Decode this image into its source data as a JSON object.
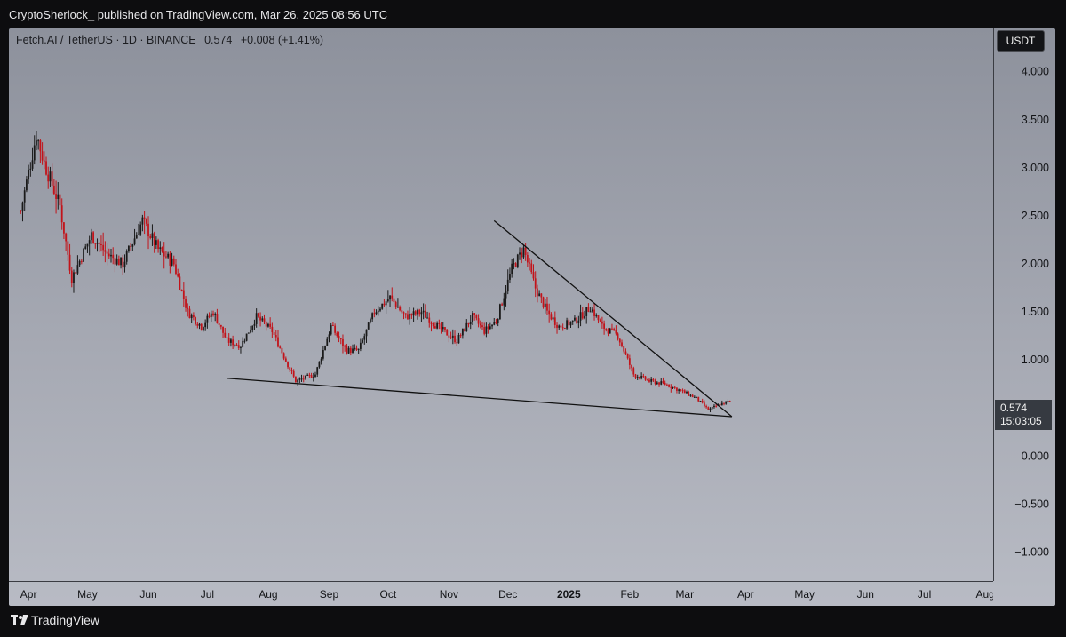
{
  "header": {
    "text": "CryptoSherlock_ published on TradingView.com, Mar 26, 2025 08:56 UTC"
  },
  "symbol": {
    "name": "Fetch.AI / TetherUS · 1D · BINANCE",
    "last": "0.574",
    "change": "+0.008 (+1.41%)"
  },
  "currency": "USDT",
  "price_tag": {
    "value": "0.574",
    "countdown": "15:03:05"
  },
  "footer": {
    "brand": "TradingView"
  },
  "colors": {
    "up": "#1a1a1a",
    "down": "#c2131a",
    "line": "#111111"
  },
  "chart_data": {
    "type": "candlestick",
    "title": "Fetch.AI / TetherUS · 1D · BINANCE",
    "yticks": [
      "4.000",
      "3.500",
      "3.000",
      "2.500",
      "2.000",
      "1.500",
      "1.000",
      "0.500",
      "0.000",
      "−0.500",
      "−1.000"
    ],
    "ytick_values": [
      4,
      3.5,
      3,
      2.5,
      2,
      1.5,
      1,
      0.5,
      0,
      -0.5,
      -1
    ],
    "ylim": [
      -1.3,
      4.45
    ],
    "x_months": [
      "Apr",
      "May",
      "Jun",
      "Jul",
      "Aug",
      "Sep",
      "Oct",
      "Nov",
      "Dec",
      "2025",
      "Feb",
      "Mar",
      "Apr",
      "May",
      "Jun",
      "Jul",
      "Aug"
    ],
    "xlim_days": [
      -6,
      495
    ],
    "month_days": [
      4,
      34,
      65,
      95,
      126,
      157,
      187,
      218,
      248,
      279,
      310,
      338,
      369,
      399,
      430,
      460,
      491
    ],
    "trendlines": [
      {
        "name": "resistance",
        "from": {
          "day": 241,
          "price": 2.45
        },
        "to": {
          "day": 362,
          "price": 0.41
        }
      },
      {
        "name": "support",
        "from": {
          "day": 105,
          "price": 0.81
        },
        "to": {
          "day": 362,
          "price": 0.41
        }
      }
    ],
    "price_path": [
      {
        "day": 0,
        "price": 2.55
      },
      {
        "day": 8,
        "price": 3.35
      },
      {
        "day": 12,
        "price": 3.05
      },
      {
        "day": 20,
        "price": 2.6
      },
      {
        "day": 26,
        "price": 1.85
      },
      {
        "day": 36,
        "price": 2.3
      },
      {
        "day": 44,
        "price": 2.1
      },
      {
        "day": 52,
        "price": 2.0
      },
      {
        "day": 62,
        "price": 2.45
      },
      {
        "day": 70,
        "price": 2.15
      },
      {
        "day": 78,
        "price": 2.0
      },
      {
        "day": 85,
        "price": 1.5
      },
      {
        "day": 92,
        "price": 1.35
      },
      {
        "day": 98,
        "price": 1.5
      },
      {
        "day": 105,
        "price": 1.2
      },
      {
        "day": 112,
        "price": 1.15
      },
      {
        "day": 120,
        "price": 1.45
      },
      {
        "day": 128,
        "price": 1.3
      },
      {
        "day": 136,
        "price": 0.95
      },
      {
        "day": 140,
        "price": 0.78
      },
      {
        "day": 150,
        "price": 0.85
      },
      {
        "day": 158,
        "price": 1.35
      },
      {
        "day": 166,
        "price": 1.1
      },
      {
        "day": 172,
        "price": 1.1
      },
      {
        "day": 180,
        "price": 1.5
      },
      {
        "day": 188,
        "price": 1.65
      },
      {
        "day": 196,
        "price": 1.45
      },
      {
        "day": 204,
        "price": 1.5
      },
      {
        "day": 212,
        "price": 1.35
      },
      {
        "day": 222,
        "price": 1.2
      },
      {
        "day": 230,
        "price": 1.45
      },
      {
        "day": 236,
        "price": 1.3
      },
      {
        "day": 242,
        "price": 1.4
      },
      {
        "day": 250,
        "price": 1.95
      },
      {
        "day": 256,
        "price": 2.15
      },
      {
        "day": 262,
        "price": 1.75
      },
      {
        "day": 268,
        "price": 1.5
      },
      {
        "day": 274,
        "price": 1.35
      },
      {
        "day": 282,
        "price": 1.4
      },
      {
        "day": 290,
        "price": 1.55
      },
      {
        "day": 296,
        "price": 1.35
      },
      {
        "day": 304,
        "price": 1.25
      },
      {
        "day": 312,
        "price": 0.85
      },
      {
        "day": 320,
        "price": 0.78
      },
      {
        "day": 328,
        "price": 0.75
      },
      {
        "day": 336,
        "price": 0.68
      },
      {
        "day": 344,
        "price": 0.6
      },
      {
        "day": 350,
        "price": 0.48
      },
      {
        "day": 356,
        "price": 0.54
      },
      {
        "day": 361,
        "price": 0.574
      }
    ]
  }
}
